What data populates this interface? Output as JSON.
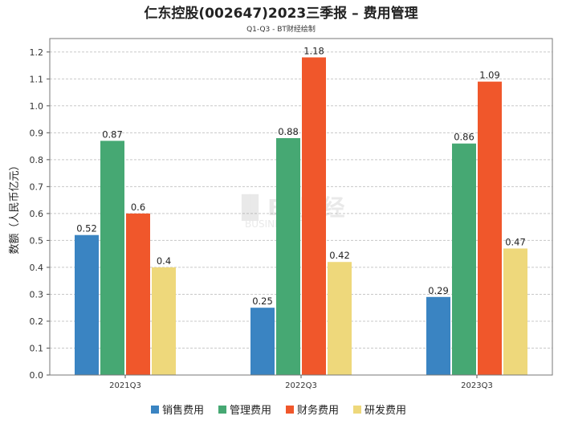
{
  "chart_data": {
    "type": "bar",
    "title": "仁东控股(002647)2023三季报 – 费用管理",
    "subtitle": "Q1-Q3 - BT财经绘制",
    "xlabel": "",
    "ylabel": "数额（人民币亿元）",
    "ylim": [
      0,
      1.25
    ],
    "yticks": [
      "0.0",
      "0.1",
      "0.2",
      "0.3",
      "0.4",
      "0.5",
      "0.6",
      "0.7",
      "0.8",
      "0.9",
      "1.0",
      "1.1",
      "1.2"
    ],
    "grid": true,
    "legend_position": "bottom",
    "categories": [
      "2021Q3",
      "2022Q3",
      "2023Q3"
    ],
    "series": [
      {
        "name": "销售费用",
        "color": "#3a84c2",
        "values": [
          0.52,
          0.25,
          0.29
        ]
      },
      {
        "name": "管理费用",
        "color": "#46a873",
        "values": [
          0.87,
          0.88,
          0.86
        ]
      },
      {
        "name": "财务费用",
        "color": "#f0572b",
        "values": [
          0.6,
          1.18,
          1.09
        ]
      },
      {
        "name": "研发费用",
        "color": "#eed87b",
        "values": [
          0.4,
          0.42,
          0.47
        ]
      }
    ],
    "watermark": {
      "line1": "BT财经",
      "line2": "BUSINESS TIMES"
    }
  }
}
